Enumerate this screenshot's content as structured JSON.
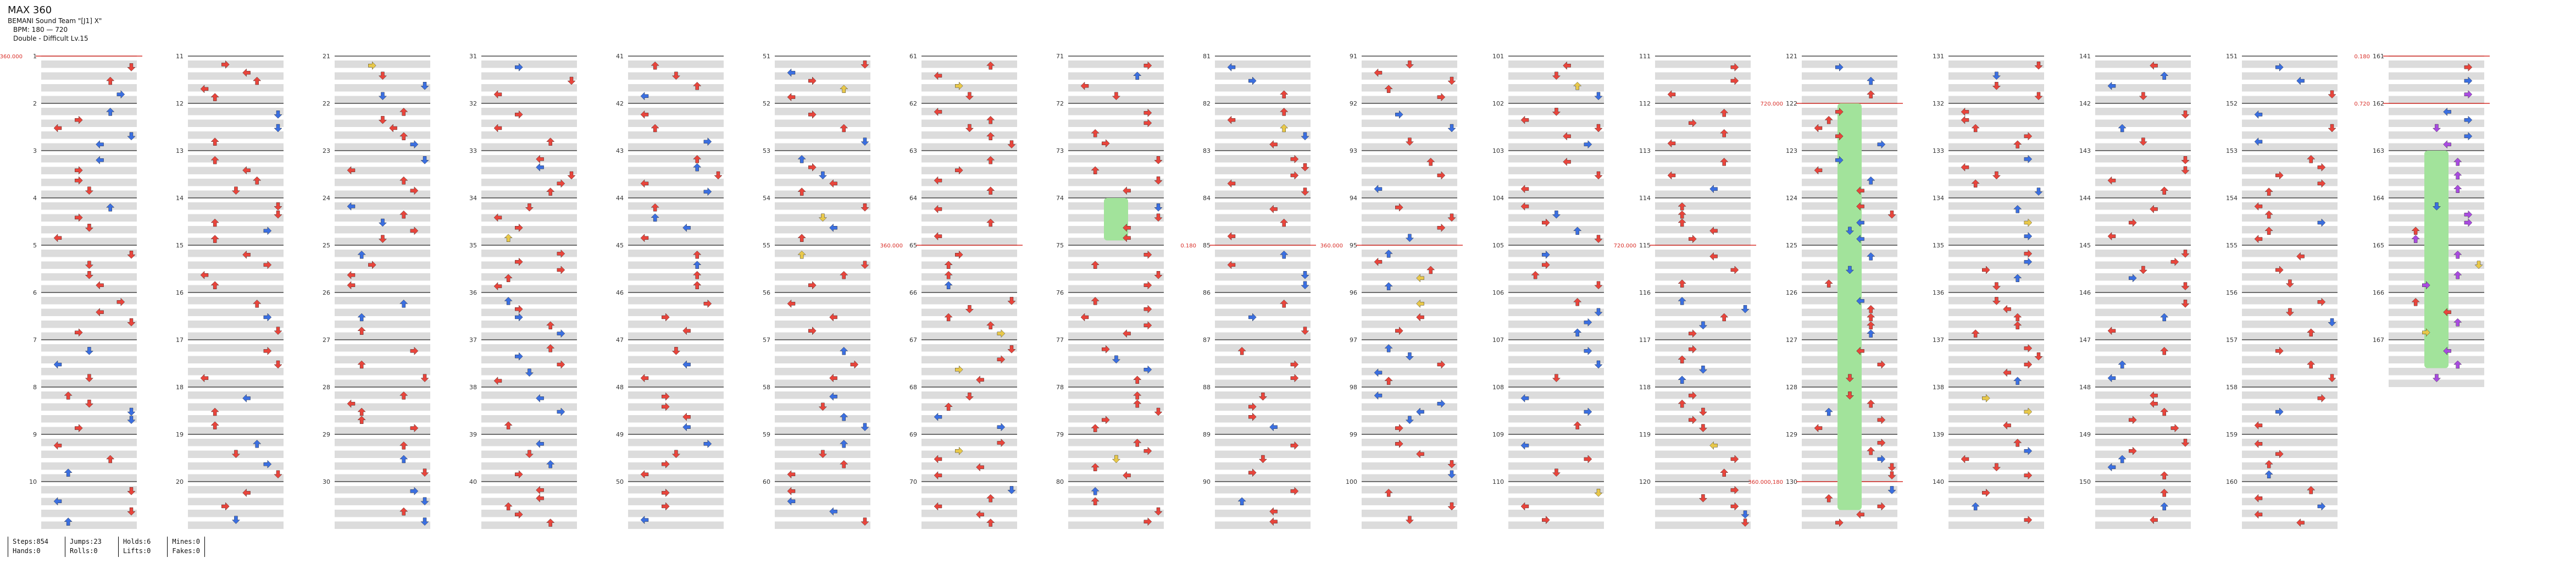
{
  "song": {
    "title": "MAX 360",
    "artist": "BEMANI Sound Team \"[J1] X\"",
    "bpm": "BPM: 180 — 720",
    "difficulty": "Double - Difficult Lv.15"
  },
  "stats": {
    "steps": "Steps:854",
    "hands": "Hands:0",
    "jumps": "Jumps:23",
    "rolls": "Rolls:0",
    "holds": "Holds:6",
    "lifts": "Lifts:0",
    "mines": "Mines:0",
    "fakes": "Fakes:0"
  },
  "colors": {
    "note_quarter": "#e8453c",
    "note_eighth": "#3b6fe0",
    "note_sixteenth": "#e8c84a",
    "note_special": "#a94be0",
    "hold_body": "#a2e39b",
    "lane_shade": "#dcdcdc",
    "bpm_marker": "#d9302a"
  },
  "chart": {
    "columns": 17,
    "measures_per_column": 10,
    "total_measures": 167,
    "notes_icon": "arrow-icon",
    "bpm_changes": [
      {
        "measure": 1,
        "label": "360.000"
      },
      {
        "measure": 65,
        "label": "360.000"
      },
      {
        "measure": 85,
        "label": "0.180"
      },
      {
        "measure": 95,
        "label": "360.000"
      },
      {
        "measure": 115,
        "label": "720.000"
      },
      {
        "measure": 122,
        "label": "720.000"
      },
      {
        "measure": 130,
        "label": "360.000,180"
      },
      {
        "measure": 161,
        "label": "0.180"
      },
      {
        "measure": 162,
        "label": "0.720"
      }
    ]
  }
}
